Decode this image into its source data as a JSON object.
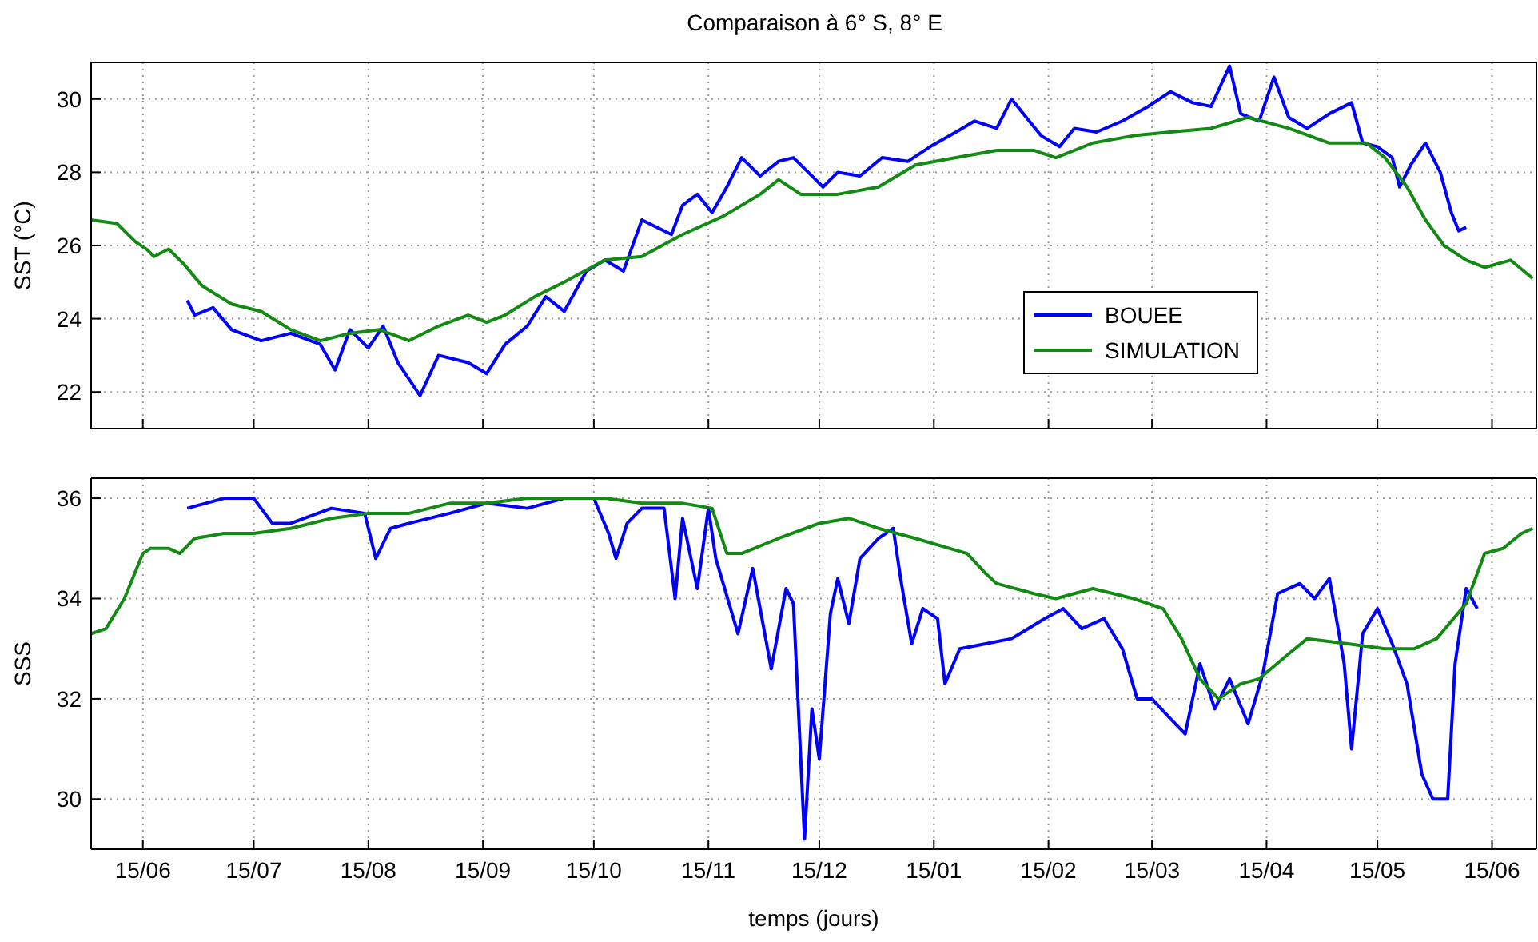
{
  "chart_data": [
    {
      "type": "line",
      "title": "Comparaison à 6° S, 8° E",
      "ylabel": "SST (°C)",
      "xlim": [
        "2001-06-01",
        "2002-06-27"
      ],
      "ylim": [
        21,
        31
      ],
      "yticks": [
        22,
        24,
        26,
        28,
        30
      ],
      "xticks": [
        {
          "value": "2001-06-15",
          "label": null
        },
        {
          "value": "2001-07-15",
          "label": null
        },
        {
          "value": "2001-08-15",
          "label": null
        },
        {
          "value": "2001-09-15",
          "label": null
        },
        {
          "value": "2001-10-15",
          "label": null
        },
        {
          "value": "2001-11-15",
          "label": null
        },
        {
          "value": "2001-12-15",
          "label": null
        },
        {
          "value": "2002-01-15",
          "label": null
        },
        {
          "value": "2002-02-15",
          "label": null
        },
        {
          "value": "2002-03-15",
          "label": null
        },
        {
          "value": "2002-04-15",
          "label": null
        },
        {
          "value": "2002-05-15",
          "label": null
        },
        {
          "value": "2002-06-15",
          "label": null
        }
      ],
      "grid": true,
      "legend": "right",
      "tick_labels": "y",
      "line_style": "solid",
      "marker": "none",
      "series": [
        {
          "name": "BOUEE",
          "color": "#0000ff",
          "x": [
            "2001-06-27",
            "2001-06-29",
            "2001-07-04",
            "2001-07-09",
            "2001-07-17",
            "2001-07-25",
            "2001-08-02",
            "2001-08-06",
            "2001-08-10",
            "2001-08-15",
            "2001-08-19",
            "2001-08-23",
            "2001-08-29",
            "2001-09-03",
            "2001-09-11",
            "2001-09-16",
            "2001-09-21",
            "2001-09-27",
            "2001-10-02",
            "2001-10-07",
            "2001-10-13",
            "2001-10-18",
            "2001-10-23",
            "2001-10-28",
            "2001-11-05",
            "2001-11-08",
            "2001-11-12",
            "2001-11-16",
            "2001-11-20",
            "2001-11-24",
            "2001-11-29",
            "2001-12-04",
            "2001-12-08",
            "2001-12-12",
            "2001-12-16",
            "2001-12-20",
            "2001-12-26",
            "2002-01-01",
            "2002-01-08",
            "2002-01-14",
            "2002-01-21",
            "2002-01-26",
            "2002-02-01",
            "2002-02-05",
            "2002-02-09",
            "2002-02-13",
            "2002-02-18",
            "2002-02-22",
            "2002-02-28",
            "2002-03-07",
            "2002-03-14",
            "2002-03-20",
            "2002-03-26",
            "2002-03-31",
            "2002-04-05",
            "2002-04-08",
            "2002-04-13",
            "2002-04-17",
            "2002-04-21",
            "2002-04-26",
            "2002-05-02",
            "2002-05-08",
            "2002-05-11",
            "2002-05-15",
            "2002-05-19",
            "2002-05-21",
            "2002-05-24",
            "2002-05-28",
            "2002-06-01",
            "2002-06-04",
            "2002-06-06",
            "2002-06-08"
          ],
          "values": [
            24.5,
            24.1,
            24.3,
            23.7,
            23.4,
            23.6,
            23.3,
            22.6,
            23.7,
            23.2,
            23.8,
            22.8,
            21.9,
            23.0,
            22.8,
            22.5,
            23.3,
            23.8,
            24.6,
            24.2,
            25.3,
            25.6,
            25.3,
            26.7,
            26.3,
            27.1,
            27.4,
            26.9,
            27.6,
            28.4,
            27.9,
            28.3,
            28.4,
            28.0,
            27.6,
            28.0,
            27.9,
            28.4,
            28.3,
            28.7,
            29.1,
            29.4,
            29.2,
            30.0,
            29.5,
            29.0,
            28.7,
            29.2,
            29.1,
            29.4,
            29.8,
            30.2,
            29.9,
            29.8,
            30.9,
            29.6,
            29.4,
            30.6,
            29.5,
            29.2,
            29.6,
            29.9,
            28.8,
            28.7,
            28.4,
            27.6,
            28.2,
            28.8,
            28.0,
            26.9,
            26.4,
            26.5
          ]
        },
        {
          "name": "SIMULATION",
          "color": "#138a13",
          "x": [
            "2001-06-01",
            "2001-06-08",
            "2001-06-13",
            "2001-06-16",
            "2001-06-18",
            "2001-06-22",
            "2001-06-26",
            "2001-07-01",
            "2001-07-09",
            "2001-07-17",
            "2001-07-25",
            "2001-08-02",
            "2001-08-10",
            "2001-08-18",
            "2001-08-26",
            "2001-09-03",
            "2001-09-11",
            "2001-09-16",
            "2001-09-21",
            "2001-09-29",
            "2001-10-07",
            "2001-10-18",
            "2001-10-28",
            "2001-11-08",
            "2001-11-19",
            "2001-11-29",
            "2001-12-04",
            "2001-12-10",
            "2001-12-20",
            "2001-12-31",
            "2002-01-10",
            "2002-01-21",
            "2002-02-01",
            "2002-02-11",
            "2002-02-17",
            "2002-02-27",
            "2002-03-10",
            "2002-03-20",
            "2002-03-31",
            "2002-04-10",
            "2002-04-21",
            "2002-05-02",
            "2002-05-12",
            "2002-05-17",
            "2002-05-23",
            "2002-05-28",
            "2002-06-02",
            "2002-06-08",
            "2002-06-13",
            "2002-06-20",
            "2002-06-26"
          ],
          "values": [
            26.7,
            26.6,
            26.1,
            25.9,
            25.7,
            25.9,
            25.5,
            24.9,
            24.4,
            24.2,
            23.7,
            23.4,
            23.6,
            23.7,
            23.4,
            23.8,
            24.1,
            23.9,
            24.1,
            24.6,
            25.0,
            25.6,
            25.7,
            26.3,
            26.8,
            27.4,
            27.8,
            27.4,
            27.4,
            27.6,
            28.2,
            28.4,
            28.6,
            28.6,
            28.4,
            28.8,
            29.0,
            29.1,
            29.2,
            29.5,
            29.2,
            28.8,
            28.8,
            28.4,
            27.6,
            26.7,
            26.0,
            25.6,
            25.4,
            25.6,
            25.1
          ]
        }
      ]
    },
    {
      "type": "line",
      "xlabel": "temps (jours)",
      "ylabel": "SSS",
      "xlim": [
        "2001-06-01",
        "2002-06-27"
      ],
      "ylim": [
        29,
        36.4
      ],
      "yticks": [
        30,
        32,
        34,
        36
      ],
      "xticks": [
        {
          "value": "2001-06-15",
          "label": "15/06"
        },
        {
          "value": "2001-07-15",
          "label": "15/07"
        },
        {
          "value": "2001-08-15",
          "label": "15/08"
        },
        {
          "value": "2001-09-15",
          "label": "15/09"
        },
        {
          "value": "2001-10-15",
          "label": "15/10"
        },
        {
          "value": "2001-11-15",
          "label": "15/11"
        },
        {
          "value": "2001-12-15",
          "label": "15/12"
        },
        {
          "value": "2002-01-15",
          "label": "15/01"
        },
        {
          "value": "2002-02-15",
          "label": "15/02"
        },
        {
          "value": "2002-03-15",
          "label": "15/03"
        },
        {
          "value": "2002-04-15",
          "label": "15/04"
        },
        {
          "value": "2002-05-15",
          "label": "15/05"
        },
        {
          "value": "2002-06-15",
          "label": "15/06"
        }
      ],
      "grid": true,
      "line_style": "solid",
      "marker": "none",
      "series": [
        {
          "color": "#0000ff",
          "x": [
            "2001-06-27",
            "2001-07-07",
            "2001-07-15",
            "2001-07-20",
            "2001-07-25",
            "2001-08-05",
            "2001-08-14",
            "2001-08-17",
            "2001-08-21",
            "2001-08-26",
            "2001-09-06",
            "2001-09-16",
            "2001-09-27",
            "2001-10-07",
            "2001-10-15",
            "2001-10-19",
            "2001-10-21",
            "2001-10-24",
            "2001-10-28",
            "2001-11-03",
            "2001-11-06",
            "2001-11-08",
            "2001-11-12",
            "2001-11-15",
            "2001-11-17",
            "2001-11-23",
            "2001-11-27",
            "2001-12-02",
            "2001-12-06",
            "2001-12-08",
            "2001-12-11",
            "2001-12-13",
            "2001-12-15",
            "2001-12-18",
            "2001-12-20",
            "2001-12-23",
            "2001-12-26",
            "2001-12-31",
            "2002-01-04",
            "2002-01-06",
            "2002-01-09",
            "2002-01-12",
            "2002-01-16",
            "2002-01-18",
            "2002-01-22",
            "2002-01-29",
            "2002-02-05",
            "2002-02-14",
            "2002-02-19",
            "2002-02-24",
            "2002-03-02",
            "2002-03-07",
            "2002-03-11",
            "2002-03-15",
            "2002-03-20",
            "2002-03-24",
            "2002-03-28",
            "2002-04-01",
            "2002-04-05",
            "2002-04-10",
            "2002-04-14",
            "2002-04-18",
            "2002-04-24",
            "2002-04-28",
            "2002-05-02",
            "2002-05-06",
            "2002-05-08",
            "2002-05-11",
            "2002-05-15",
            "2002-05-19",
            "2002-05-23",
            "2002-05-27",
            "2002-05-30",
            "2002-06-03",
            "2002-06-05",
            "2002-06-08",
            "2002-06-11"
          ],
          "values": [
            35.8,
            36.0,
            36.0,
            35.5,
            35.5,
            35.8,
            35.7,
            34.8,
            35.4,
            35.5,
            35.7,
            35.9,
            35.8,
            36.0,
            36.0,
            35.3,
            34.8,
            35.5,
            35.8,
            35.8,
            34.0,
            35.6,
            34.2,
            35.8,
            34.8,
            33.3,
            34.6,
            32.6,
            34.2,
            33.9,
            29.2,
            31.8,
            30.8,
            33.7,
            34.4,
            33.5,
            34.8,
            35.2,
            35.4,
            34.4,
            33.1,
            33.8,
            33.6,
            32.3,
            33.0,
            33.1,
            33.2,
            33.6,
            33.8,
            33.4,
            33.6,
            33.0,
            32.0,
            32.0,
            31.6,
            31.3,
            32.7,
            31.8,
            32.4,
            31.5,
            32.5,
            34.1,
            34.3,
            34.0,
            34.4,
            32.7,
            31.0,
            33.3,
            33.8,
            33.1,
            32.3,
            30.5,
            30.0,
            30.0,
            32.7,
            34.2,
            33.8
          ]
        },
        {
          "color": "#138a13",
          "x": [
            "2001-06-01",
            "2001-06-05",
            "2001-06-10",
            "2001-06-15",
            "2001-06-17",
            "2001-06-22",
            "2001-06-25",
            "2001-06-29",
            "2001-07-07",
            "2001-07-15",
            "2001-07-25",
            "2001-08-05",
            "2001-08-15",
            "2001-08-26",
            "2001-09-06",
            "2001-09-16",
            "2001-09-27",
            "2001-10-07",
            "2001-10-18",
            "2001-10-28",
            "2001-11-08",
            "2001-11-16",
            "2001-11-20",
            "2001-11-24",
            "2001-12-04",
            "2001-12-15",
            "2001-12-23",
            "2001-12-31",
            "2002-01-10",
            "2002-01-24",
            "2002-01-29",
            "2002-02-01",
            "2002-02-11",
            "2002-02-17",
            "2002-02-27",
            "2002-03-10",
            "2002-03-18",
            "2002-03-23",
            "2002-03-28",
            "2002-04-02",
            "2002-04-08",
            "2002-04-13",
            "2002-04-21",
            "2002-04-26",
            "2002-05-07",
            "2002-05-17",
            "2002-05-25",
            "2002-05-31",
            "2002-06-08",
            "2002-06-13",
            "2002-06-18",
            "2002-06-23",
            "2002-06-26"
          ],
          "values": [
            33.3,
            33.4,
            34.0,
            34.9,
            35.0,
            35.0,
            34.9,
            35.2,
            35.3,
            35.3,
            35.4,
            35.6,
            35.7,
            35.7,
            35.9,
            35.9,
            36.0,
            36.0,
            36.0,
            35.9,
            35.9,
            35.8,
            34.9,
            34.9,
            35.2,
            35.5,
            35.6,
            35.4,
            35.2,
            34.9,
            34.5,
            34.3,
            34.1,
            34.0,
            34.2,
            34.0,
            33.8,
            33.2,
            32.4,
            32.0,
            32.3,
            32.4,
            32.9,
            33.2,
            33.1,
            33.0,
            33.0,
            33.2,
            33.9,
            34.9,
            35.0,
            35.3,
            35.4
          ]
        }
      ]
    }
  ]
}
